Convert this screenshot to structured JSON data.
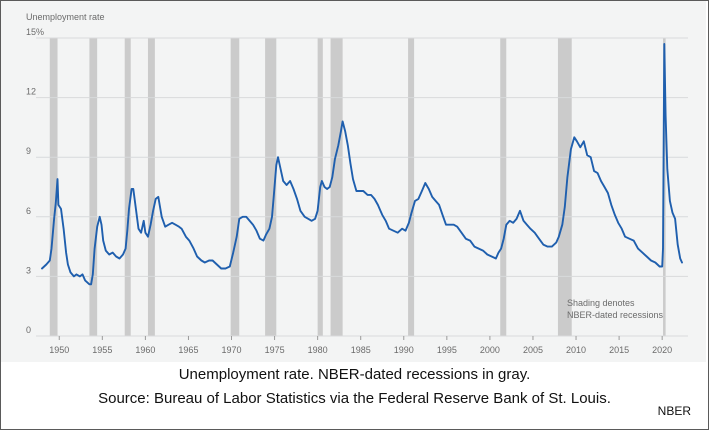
{
  "caption": {
    "line1": "Unemployment rate. NBER-dated recessions in gray.",
    "line2": "Source: Bureau of Labor Statistics via the Federal Reserve Bank of St. Louis.",
    "credit": "NBER"
  },
  "chart_data": {
    "type": "line",
    "title": "Unemployment rate",
    "ylim": [
      0,
      15
    ],
    "xlim": [
      1947.3,
      2023
    ],
    "y_ticks": [
      {
        "value": 15,
        "label": "15%"
      },
      {
        "value": 12,
        "label": "12"
      },
      {
        "value": 9,
        "label": "9"
      },
      {
        "value": 6,
        "label": "6"
      },
      {
        "value": 3,
        "label": "3"
      },
      {
        "value": 0,
        "label": "0"
      }
    ],
    "x_ticks": [
      1950,
      1955,
      1960,
      1965,
      1970,
      1975,
      1980,
      1985,
      1990,
      1995,
      2000,
      2005,
      2010,
      2015,
      2020
    ],
    "grid": true,
    "colors": {
      "line": "#1f5fae",
      "recession": "#cbcbcb",
      "grid": "#d8dadb",
      "text": "#6b6b6b"
    },
    "annotation": [
      "Shading denotes",
      "NBER-dated recessions"
    ],
    "recessions": [
      [
        1948.9,
        1949.8
      ],
      [
        1953.5,
        1954.4
      ],
      [
        1957.6,
        1958.3
      ],
      [
        1960.3,
        1961.1
      ],
      [
        1969.9,
        1970.9
      ],
      [
        1973.9,
        1975.2
      ],
      [
        1980.0,
        1980.6
      ],
      [
        1981.5,
        1982.9
      ],
      [
        1990.5,
        1991.2
      ],
      [
        2001.2,
        2001.9
      ],
      [
        2007.9,
        2009.5
      ],
      [
        2020.1,
        2020.4
      ]
    ],
    "series": [
      {
        "values": [
          [
            1948.0,
            3.4
          ],
          [
            1948.5,
            3.6
          ],
          [
            1948.9,
            3.8
          ],
          [
            1949.1,
            4.4
          ],
          [
            1949.4,
            5.9
          ],
          [
            1949.6,
            6.7
          ],
          [
            1949.8,
            7.9
          ],
          [
            1949.9,
            6.6
          ],
          [
            1950.2,
            6.4
          ],
          [
            1950.5,
            5.4
          ],
          [
            1950.8,
            4.2
          ],
          [
            1951.0,
            3.6
          ],
          [
            1951.3,
            3.2
          ],
          [
            1951.7,
            3.0
          ],
          [
            1952.0,
            3.1
          ],
          [
            1952.4,
            3.0
          ],
          [
            1952.7,
            3.1
          ],
          [
            1953.0,
            2.8
          ],
          [
            1953.5,
            2.6
          ],
          [
            1953.7,
            2.6
          ],
          [
            1953.9,
            3.1
          ],
          [
            1954.1,
            4.4
          ],
          [
            1954.4,
            5.5
          ],
          [
            1954.7,
            6.0
          ],
          [
            1954.9,
            5.6
          ],
          [
            1955.1,
            4.8
          ],
          [
            1955.4,
            4.3
          ],
          [
            1955.8,
            4.1
          ],
          [
            1956.2,
            4.2
          ],
          [
            1956.6,
            4.0
          ],
          [
            1957.0,
            3.9
          ],
          [
            1957.4,
            4.1
          ],
          [
            1957.7,
            4.4
          ],
          [
            1957.9,
            5.3
          ],
          [
            1958.1,
            6.4
          ],
          [
            1958.4,
            7.4
          ],
          [
            1958.6,
            7.4
          ],
          [
            1958.9,
            6.4
          ],
          [
            1959.2,
            5.4
          ],
          [
            1959.5,
            5.2
          ],
          [
            1959.8,
            5.8
          ],
          [
            1960.0,
            5.2
          ],
          [
            1960.3,
            5.0
          ],
          [
            1960.6,
            5.6
          ],
          [
            1960.9,
            6.3
          ],
          [
            1961.2,
            6.9
          ],
          [
            1961.5,
            7.0
          ],
          [
            1961.9,
            6.0
          ],
          [
            1962.3,
            5.5
          ],
          [
            1962.7,
            5.6
          ],
          [
            1963.1,
            5.7
          ],
          [
            1963.5,
            5.6
          ],
          [
            1963.9,
            5.5
          ],
          [
            1964.2,
            5.4
          ],
          [
            1964.7,
            5.0
          ],
          [
            1965.1,
            4.8
          ],
          [
            1965.6,
            4.4
          ],
          [
            1966.0,
            4.0
          ],
          [
            1966.5,
            3.8
          ],
          [
            1966.9,
            3.7
          ],
          [
            1967.4,
            3.8
          ],
          [
            1967.8,
            3.8
          ],
          [
            1968.3,
            3.6
          ],
          [
            1968.8,
            3.4
          ],
          [
            1969.3,
            3.4
          ],
          [
            1969.8,
            3.5
          ],
          [
            1970.2,
            4.2
          ],
          [
            1970.6,
            5.0
          ],
          [
            1970.9,
            5.9
          ],
          [
            1971.3,
            6.0
          ],
          [
            1971.7,
            6.0
          ],
          [
            1972.1,
            5.8
          ],
          [
            1972.5,
            5.6
          ],
          [
            1972.9,
            5.3
          ],
          [
            1973.3,
            4.9
          ],
          [
            1973.7,
            4.8
          ],
          [
            1974.0,
            5.1
          ],
          [
            1974.4,
            5.4
          ],
          [
            1974.7,
            6.0
          ],
          [
            1974.9,
            7.0
          ],
          [
            1975.2,
            8.6
          ],
          [
            1975.4,
            9.0
          ],
          [
            1975.7,
            8.4
          ],
          [
            1976.0,
            7.8
          ],
          [
            1976.4,
            7.6
          ],
          [
            1976.8,
            7.8
          ],
          [
            1977.2,
            7.4
          ],
          [
            1977.6,
            6.9
          ],
          [
            1978.0,
            6.3
          ],
          [
            1978.5,
            6.0
          ],
          [
            1978.9,
            5.9
          ],
          [
            1979.3,
            5.8
          ],
          [
            1979.7,
            5.9
          ],
          [
            1980.0,
            6.3
          ],
          [
            1980.3,
            7.5
          ],
          [
            1980.5,
            7.8
          ],
          [
            1980.8,
            7.5
          ],
          [
            1981.1,
            7.4
          ],
          [
            1981.4,
            7.5
          ],
          [
            1981.7,
            8.0
          ],
          [
            1982.0,
            8.9
          ],
          [
            1982.4,
            9.6
          ],
          [
            1982.7,
            10.3
          ],
          [
            1982.9,
            10.8
          ],
          [
            1983.2,
            10.3
          ],
          [
            1983.5,
            9.6
          ],
          [
            1983.8,
            8.7
          ],
          [
            1984.1,
            7.9
          ],
          [
            1984.5,
            7.3
          ],
          [
            1984.9,
            7.3
          ],
          [
            1985.3,
            7.3
          ],
          [
            1985.8,
            7.1
          ],
          [
            1986.2,
            7.1
          ],
          [
            1986.6,
            6.9
          ],
          [
            1987.0,
            6.6
          ],
          [
            1987.5,
            6.1
          ],
          [
            1987.9,
            5.8
          ],
          [
            1988.3,
            5.4
          ],
          [
            1988.8,
            5.3
          ],
          [
            1989.3,
            5.2
          ],
          [
            1989.8,
            5.4
          ],
          [
            1990.2,
            5.3
          ],
          [
            1990.6,
            5.7
          ],
          [
            1990.9,
            6.2
          ],
          [
            1991.3,
            6.8
          ],
          [
            1991.7,
            6.9
          ],
          [
            1992.1,
            7.3
          ],
          [
            1992.5,
            7.7
          ],
          [
            1992.9,
            7.4
          ],
          [
            1993.3,
            7.0
          ],
          [
            1993.7,
            6.8
          ],
          [
            1994.1,
            6.6
          ],
          [
            1994.5,
            6.1
          ],
          [
            1994.9,
            5.6
          ],
          [
            1995.3,
            5.6
          ],
          [
            1995.8,
            5.6
          ],
          [
            1996.2,
            5.5
          ],
          [
            1996.7,
            5.2
          ],
          [
            1997.2,
            4.9
          ],
          [
            1997.7,
            4.8
          ],
          [
            1998.2,
            4.5
          ],
          [
            1998.7,
            4.4
          ],
          [
            1999.2,
            4.3
          ],
          [
            1999.7,
            4.1
          ],
          [
            2000.2,
            4.0
          ],
          [
            2000.7,
            3.9
          ],
          [
            2001.0,
            4.2
          ],
          [
            2001.3,
            4.4
          ],
          [
            2001.6,
            4.9
          ],
          [
            2001.9,
            5.6
          ],
          [
            2002.3,
            5.8
          ],
          [
            2002.7,
            5.7
          ],
          [
            2003.1,
            5.9
          ],
          [
            2003.5,
            6.3
          ],
          [
            2003.9,
            5.8
          ],
          [
            2004.3,
            5.6
          ],
          [
            2004.7,
            5.4
          ],
          [
            2005.2,
            5.2
          ],
          [
            2005.7,
            4.9
          ],
          [
            2006.2,
            4.6
          ],
          [
            2006.7,
            4.5
          ],
          [
            2007.2,
            4.5
          ],
          [
            2007.7,
            4.7
          ],
          [
            2008.0,
            5.0
          ],
          [
            2008.4,
            5.6
          ],
          [
            2008.7,
            6.5
          ],
          [
            2009.0,
            8.0
          ],
          [
            2009.4,
            9.4
          ],
          [
            2009.8,
            10.0
          ],
          [
            2010.1,
            9.8
          ],
          [
            2010.5,
            9.5
          ],
          [
            2010.9,
            9.8
          ],
          [
            2011.3,
            9.1
          ],
          [
            2011.7,
            9.0
          ],
          [
            2012.1,
            8.3
          ],
          [
            2012.5,
            8.2
          ],
          [
            2012.9,
            7.8
          ],
          [
            2013.3,
            7.5
          ],
          [
            2013.7,
            7.2
          ],
          [
            2014.1,
            6.6
          ],
          [
            2014.5,
            6.1
          ],
          [
            2014.9,
            5.7
          ],
          [
            2015.3,
            5.4
          ],
          [
            2015.7,
            5.0
          ],
          [
            2016.2,
            4.9
          ],
          [
            2016.7,
            4.8
          ],
          [
            2017.2,
            4.4
          ],
          [
            2017.7,
            4.2
          ],
          [
            2018.2,
            4.0
          ],
          [
            2018.7,
            3.8
          ],
          [
            2019.2,
            3.7
          ],
          [
            2019.7,
            3.5
          ],
          [
            2020.0,
            3.5
          ],
          [
            2020.1,
            4.4
          ],
          [
            2020.25,
            14.7
          ],
          [
            2020.4,
            11.1
          ],
          [
            2020.6,
            8.4
          ],
          [
            2020.9,
            6.8
          ],
          [
            2021.2,
            6.2
          ],
          [
            2021.5,
            5.9
          ],
          [
            2021.8,
            4.6
          ],
          [
            2022.1,
            3.9
          ],
          [
            2022.3,
            3.7
          ]
        ]
      }
    ]
  }
}
